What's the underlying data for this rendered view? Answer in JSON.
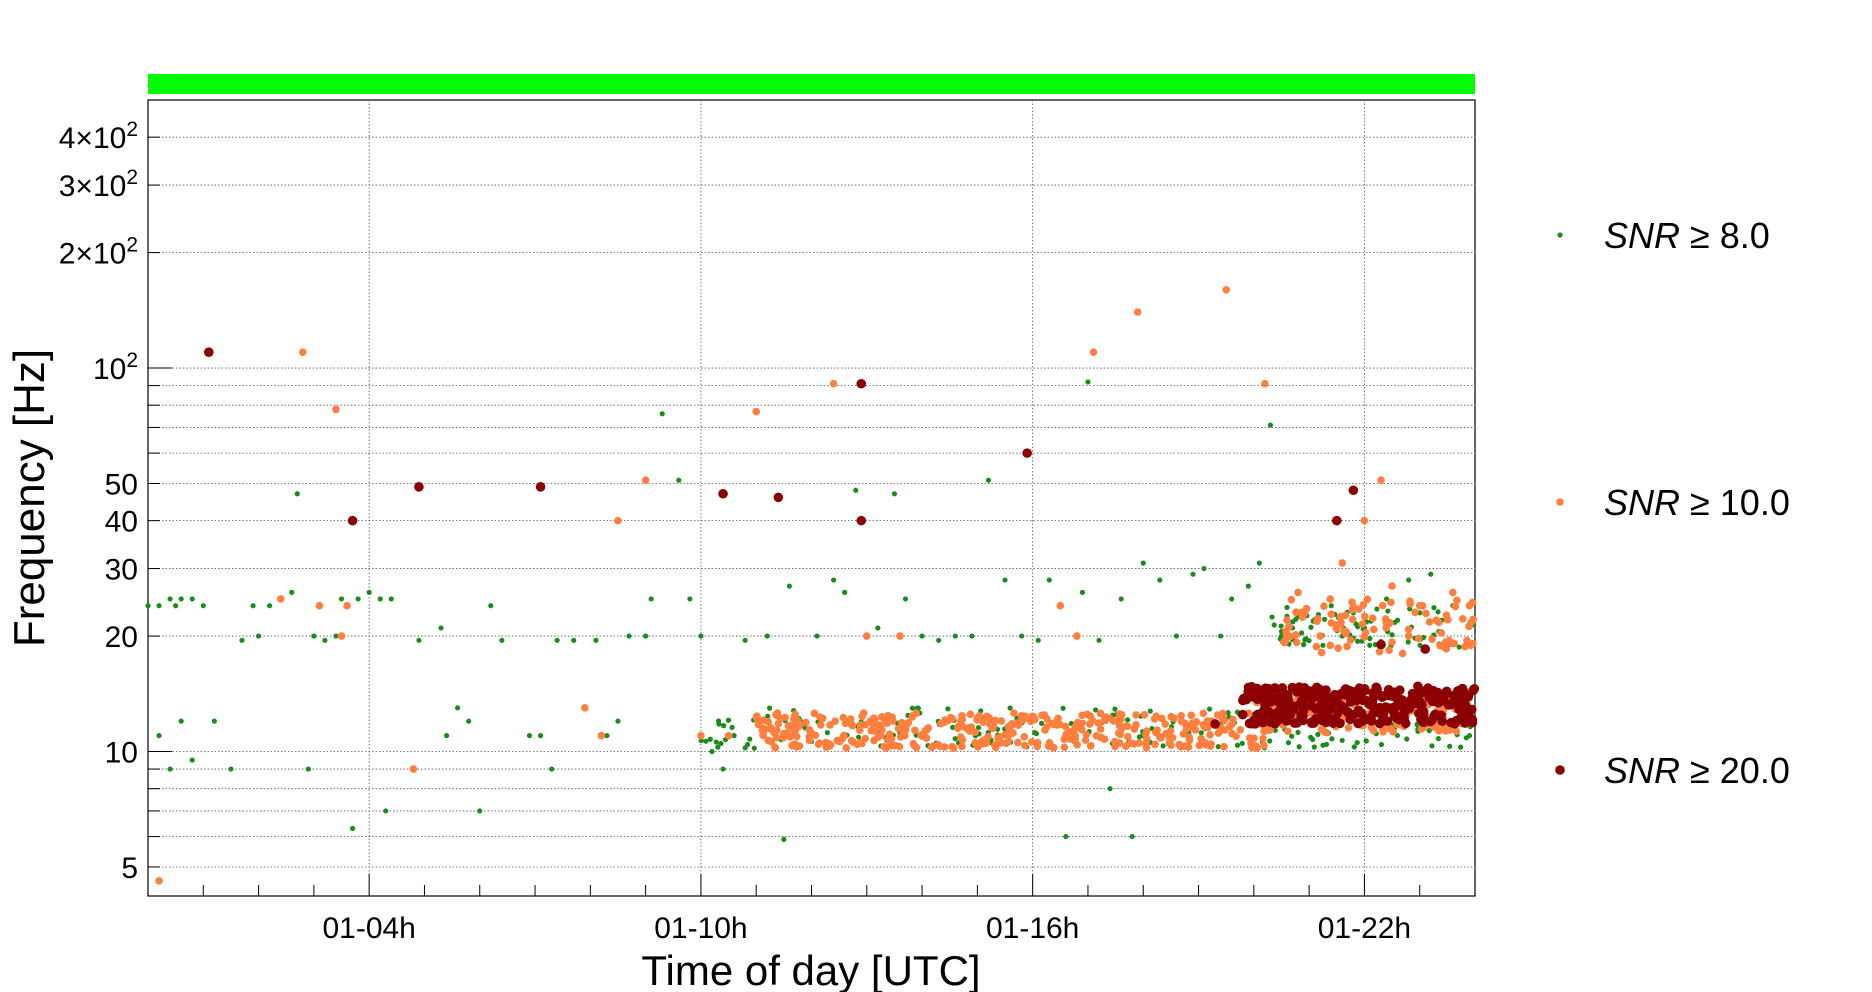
{
  "chart_data": {
    "type": "scatter",
    "xlabel": "Time of day [UTC]",
    "ylabel": "Frequency [Hz]",
    "y_scale": "log",
    "xlim": [
      0,
      24
    ],
    "ylim": [
      4.2,
      500
    ],
    "x_ticks": [
      {
        "value": 4,
        "label": "01-04h"
      },
      {
        "value": 10,
        "label": "01-10h"
      },
      {
        "value": 16,
        "label": "01-16h"
      },
      {
        "value": 22,
        "label": "01-22h"
      }
    ],
    "y_ticks": [
      {
        "value": 5,
        "label": "5",
        "exp": ""
      },
      {
        "value": 10,
        "label": "10",
        "exp": ""
      },
      {
        "value": 20,
        "label": "20",
        "exp": ""
      },
      {
        "value": 30,
        "label": "30",
        "exp": ""
      },
      {
        "value": 40,
        "label": "40",
        "exp": ""
      },
      {
        "value": 50,
        "label": "50",
        "exp": ""
      },
      {
        "value": 100,
        "label": "10",
        "exp": "2"
      },
      {
        "value": 200,
        "label": "2×10",
        "exp": "2"
      },
      {
        "value": 300,
        "label": "3×10",
        "exp": "2"
      },
      {
        "value": 400,
        "label": "4×10",
        "exp": "2"
      }
    ],
    "grid": true,
    "segment_bar_color": "#00ff00",
    "legend_position": "right",
    "series": [
      {
        "name": "SNR ≥ 8.0",
        "color": "#1a8c1a",
        "size": "small",
        "points": [
          [
            0.0,
            24
          ],
          [
            0.2,
            24
          ],
          [
            0.4,
            25
          ],
          [
            0.5,
            24
          ],
          [
            0.6,
            25
          ],
          [
            0.8,
            25
          ],
          [
            1.0,
            24
          ],
          [
            1.2,
            12
          ],
          [
            0.2,
            11
          ],
          [
            0.4,
            9
          ],
          [
            0.6,
            12
          ],
          [
            0.8,
            9.5
          ],
          [
            1.5,
            9
          ],
          [
            1.7,
            19.5
          ],
          [
            1.9,
            24
          ],
          [
            2.0,
            20
          ],
          [
            2.2,
            24
          ],
          [
            2.4,
            25
          ],
          [
            2.6,
            26
          ],
          [
            2.7,
            47
          ],
          [
            2.9,
            9
          ],
          [
            3.0,
            20
          ],
          [
            3.2,
            19.5
          ],
          [
            3.4,
            20
          ],
          [
            3.5,
            25
          ],
          [
            3.6,
            24
          ],
          [
            3.7,
            6.3
          ],
          [
            3.8,
            25
          ],
          [
            4.0,
            26
          ],
          [
            4.2,
            25
          ],
          [
            4.4,
            25
          ],
          [
            4.3,
            7
          ],
          [
            4.9,
            19.5
          ],
          [
            5.3,
            21
          ],
          [
            5.4,
            11
          ],
          [
            5.6,
            13
          ],
          [
            5.8,
            12
          ],
          [
            6.0,
            7
          ],
          [
            6.2,
            24
          ],
          [
            6.4,
            19.5
          ],
          [
            6.9,
            11
          ],
          [
            7.1,
            11
          ],
          [
            7.4,
            19.5
          ],
          [
            7.3,
            9
          ],
          [
            7.7,
            19.5
          ],
          [
            8.1,
            19.5
          ],
          [
            8.3,
            11
          ],
          [
            8.5,
            12
          ],
          [
            8.7,
            20
          ],
          [
            9.0,
            20
          ],
          [
            9.1,
            25
          ],
          [
            9.3,
            76
          ],
          [
            9.6,
            51
          ],
          [
            9.8,
            25
          ],
          [
            10.0,
            20
          ],
          [
            10.2,
            10
          ],
          [
            10.4,
            9
          ],
          [
            10.6,
            11
          ],
          [
            10.8,
            19.5
          ],
          [
            11.2,
            20
          ],
          [
            11.5,
            5.9
          ],
          [
            11.6,
            27
          ],
          [
            11.8,
            12
          ],
          [
            12.1,
            20
          ],
          [
            12.4,
            28
          ],
          [
            12.6,
            26
          ],
          [
            12.8,
            48
          ],
          [
            13.0,
            20
          ],
          [
            13.2,
            21
          ],
          [
            13.5,
            47
          ],
          [
            13.7,
            25
          ],
          [
            14.0,
            20
          ],
          [
            14.3,
            19.5
          ],
          [
            14.6,
            20
          ],
          [
            14.9,
            20
          ],
          [
            15.2,
            51
          ],
          [
            15.5,
            28
          ],
          [
            15.8,
            20
          ],
          [
            16.1,
            19.5
          ],
          [
            16.3,
            28
          ],
          [
            16.6,
            6
          ],
          [
            16.9,
            26
          ],
          [
            17.0,
            92
          ],
          [
            17.2,
            19.5
          ],
          [
            17.4,
            8
          ],
          [
            17.6,
            25
          ],
          [
            17.8,
            6
          ],
          [
            18.0,
            31
          ],
          [
            18.3,
            28
          ],
          [
            18.6,
            20
          ],
          [
            18.9,
            29
          ],
          [
            19.1,
            30
          ],
          [
            19.4,
            20
          ],
          [
            19.6,
            25
          ],
          [
            19.9,
            27
          ],
          [
            20.1,
            31
          ],
          [
            20.3,
            71
          ],
          [
            20.5,
            20
          ],
          [
            20.7,
            21
          ],
          [
            20.9,
            19
          ],
          [
            21.1,
            22
          ],
          [
            21.4,
            24
          ],
          [
            21.6,
            20
          ],
          [
            21.8,
            23
          ],
          [
            22.0,
            21
          ],
          [
            22.2,
            19
          ],
          [
            22.4,
            25
          ],
          [
            22.6,
            22
          ],
          [
            22.8,
            28
          ],
          [
            23.0,
            23
          ],
          [
            23.2,
            29
          ],
          [
            23.4,
            22
          ],
          [
            23.6,
            24
          ],
          [
            23.9,
            11
          ]
        ]
      },
      {
        "name": "SNR ≥ 10.0",
        "color": "#ff7f3f",
        "size": "medium",
        "points": [
          [
            0.2,
            4.6
          ],
          [
            2.4,
            25
          ],
          [
            2.8,
            110
          ],
          [
            3.1,
            24
          ],
          [
            3.4,
            78
          ],
          [
            3.5,
            20
          ],
          [
            3.6,
            24
          ],
          [
            4.8,
            9
          ],
          [
            7.9,
            13
          ],
          [
            8.2,
            11
          ],
          [
            8.5,
            40
          ],
          [
            9.0,
            51
          ],
          [
            10.0,
            11
          ],
          [
            10.5,
            11
          ],
          [
            11.0,
            77
          ],
          [
            12.4,
            91
          ],
          [
            13.0,
            20
          ],
          [
            13.6,
            20
          ],
          [
            16.5,
            24
          ],
          [
            16.8,
            20
          ],
          [
            17.1,
            110
          ],
          [
            17.9,
            140
          ],
          [
            19.5,
            160
          ],
          [
            20.2,
            91
          ],
          [
            20.6,
            22
          ],
          [
            20.8,
            26
          ],
          [
            21.2,
            20
          ],
          [
            21.6,
            31
          ],
          [
            22.0,
            40
          ],
          [
            22.3,
            51
          ],
          [
            22.5,
            27
          ],
          [
            22.8,
            20
          ],
          [
            23.0,
            24
          ],
          [
            23.3,
            22
          ],
          [
            23.6,
            26
          ],
          [
            23.9,
            24
          ]
        ]
      },
      {
        "name": "SNR ≥ 20.0",
        "color": "#8b0000",
        "size": "large",
        "points": [
          [
            1.1,
            110
          ],
          [
            3.7,
            40
          ],
          [
            4.9,
            49
          ],
          [
            7.1,
            49
          ],
          [
            10.4,
            47
          ],
          [
            11.4,
            46
          ],
          [
            12.9,
            91
          ],
          [
            12.9,
            40
          ],
          [
            15.9,
            60
          ],
          [
            19.3,
            11.8
          ],
          [
            20.1,
            14
          ],
          [
            20.6,
            13.5
          ],
          [
            21.2,
            14.5
          ],
          [
            21.5,
            40
          ],
          [
            21.8,
            48
          ],
          [
            22.3,
            19
          ],
          [
            23.1,
            18.5
          ]
        ]
      }
    ],
    "bands": [
      {
        "series": 0,
        "x0": 10.0,
        "x1": 24.0,
        "y0": 10.2,
        "y1": 13.0,
        "n": 220,
        "seed": 11
      },
      {
        "series": 1,
        "x0": 11.0,
        "x1": 20.2,
        "y0": 10.2,
        "y1": 12.6,
        "n": 380,
        "seed": 23
      },
      {
        "series": 1,
        "x0": 20.0,
        "x1": 24.0,
        "y0": 11.2,
        "y1": 14.0,
        "n": 160,
        "seed": 37
      },
      {
        "series": 1,
        "x0": 20.5,
        "x1": 24.0,
        "y0": 18.0,
        "y1": 25.0,
        "n": 90,
        "seed": 41
      },
      {
        "series": 0,
        "x0": 20.3,
        "x1": 24.0,
        "y0": 18.5,
        "y1": 24.0,
        "n": 70,
        "seed": 53
      },
      {
        "series": 2,
        "x0": 19.8,
        "x1": 24.0,
        "y0": 11.8,
        "y1": 14.8,
        "n": 300,
        "seed": 67
      }
    ]
  }
}
